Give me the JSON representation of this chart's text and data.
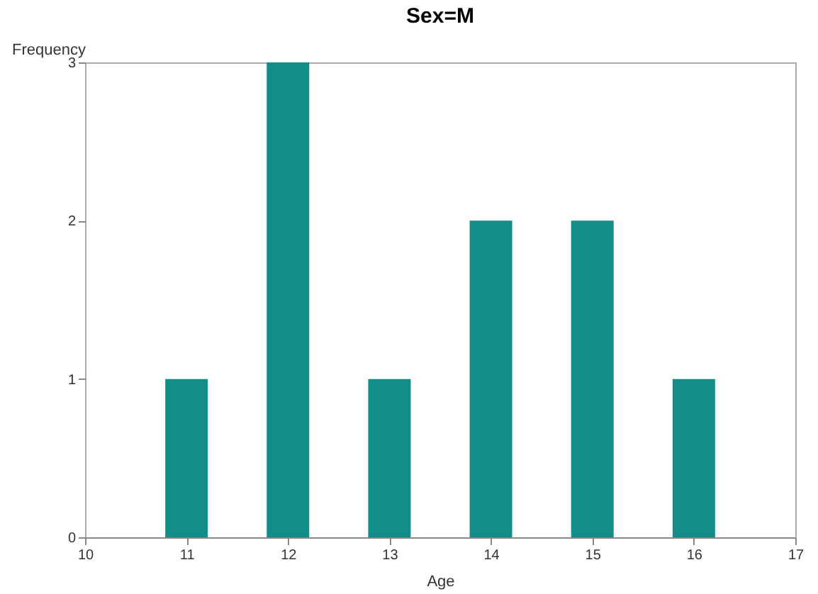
{
  "chart_data": {
    "type": "bar",
    "title": "Sex=M",
    "xlabel": "Age",
    "ylabel": "Frequency",
    "x": [
      11,
      12,
      13,
      14,
      15,
      16
    ],
    "values": [
      1,
      3,
      1,
      2,
      2,
      1
    ],
    "color": "#138d8a",
    "xlim": [
      10,
      17
    ],
    "xticks": [
      10,
      11,
      12,
      13,
      14,
      15,
      16,
      17
    ],
    "ylim": [
      0,
      3
    ],
    "yticks": [
      0,
      1,
      2,
      3
    ],
    "grid": false
  }
}
